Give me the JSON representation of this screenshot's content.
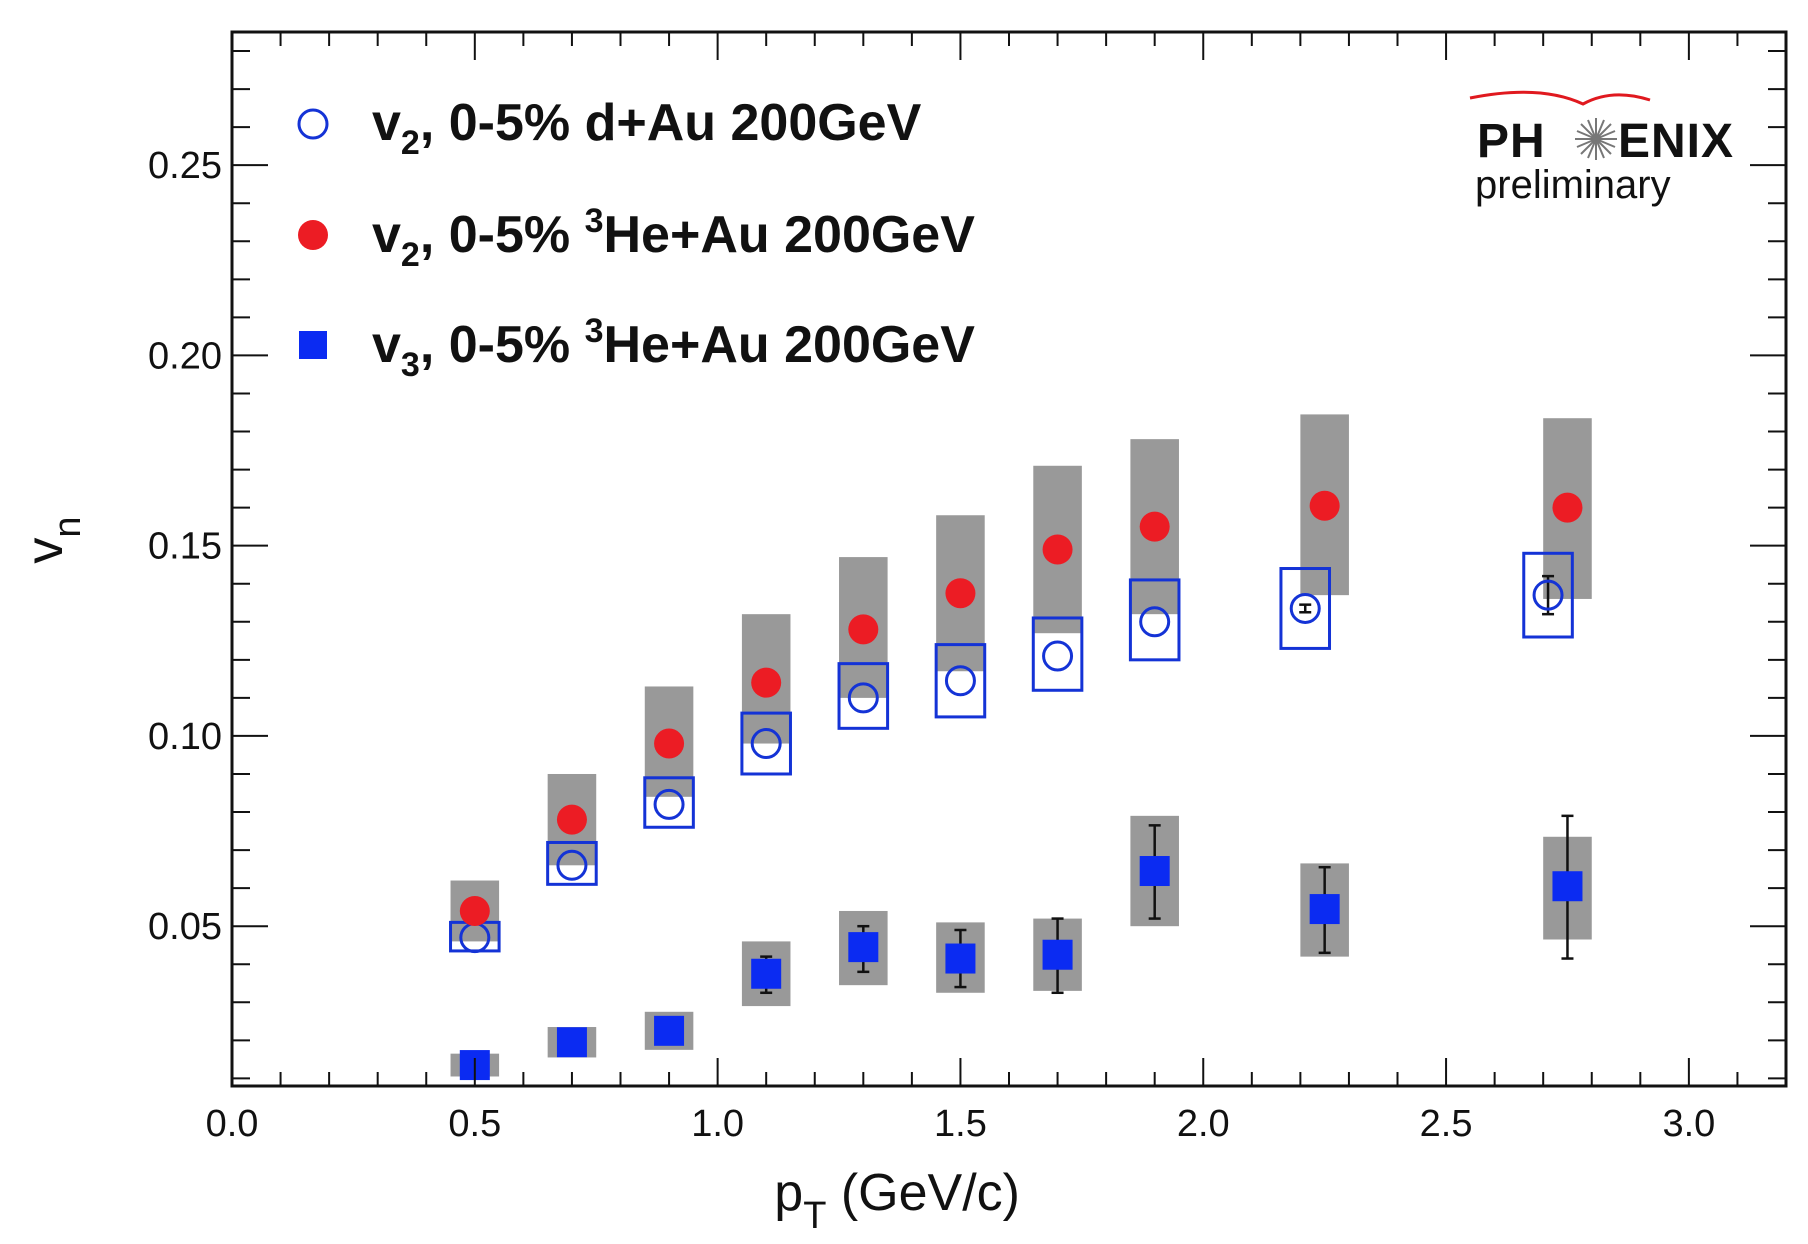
{
  "chart_data": {
    "type": "scatter",
    "xlabel": "p",
    "xlabel_sub": "T",
    "xlabel_unit": " (GeV/c)",
    "ylabel": "v",
    "ylabel_sub": "n",
    "xlim": [
      0.0,
      3.2
    ],
    "ylim": [
      0.008,
      0.285
    ],
    "xticks": [
      0.0,
      0.5,
      1.0,
      1.5,
      2.0,
      2.5,
      3.0
    ],
    "xtick_labels": [
      "0.0",
      "0.5",
      "1.0",
      "1.5",
      "2.0",
      "2.5",
      "3.0"
    ],
    "yticks": [
      0.05,
      0.1,
      0.15,
      0.2,
      0.25
    ],
    "ytick_labels": [
      "0.05",
      "0.10",
      "0.15",
      "0.20",
      "0.25"
    ],
    "series": [
      {
        "name": "v2, 0-5% d+Au 200GeV",
        "legend_parts": [
          "v",
          "2",
          ", 0-5% d+Au 200GeV"
        ],
        "marker": "open-circle",
        "color": "#1433d6",
        "syst_style": "open-box",
        "points": [
          {
            "x": 0.5,
            "y": 0.047,
            "syst_lo": 0.0435,
            "syst_hi": 0.051
          },
          {
            "x": 0.7,
            "y": 0.066,
            "syst_lo": 0.061,
            "syst_hi": 0.072
          },
          {
            "x": 0.9,
            "y": 0.082,
            "syst_lo": 0.076,
            "syst_hi": 0.089
          },
          {
            "x": 1.1,
            "y": 0.098,
            "syst_lo": 0.09,
            "syst_hi": 0.106
          },
          {
            "x": 1.3,
            "y": 0.11,
            "syst_lo": 0.102,
            "syst_hi": 0.119
          },
          {
            "x": 1.5,
            "y": 0.1145,
            "syst_lo": 0.105,
            "syst_hi": 0.124
          },
          {
            "x": 1.7,
            "y": 0.121,
            "syst_lo": 0.112,
            "syst_hi": 0.131
          },
          {
            "x": 1.9,
            "y": 0.13,
            "syst_lo": 0.12,
            "syst_hi": 0.141
          },
          {
            "x": 2.21,
            "y": 0.1335,
            "syst_lo": 0.123,
            "syst_hi": 0.144,
            "err_lo": 0.1325,
            "err_hi": 0.1345
          },
          {
            "x": 2.71,
            "y": 0.137,
            "syst_lo": 0.126,
            "syst_hi": 0.148,
            "err_lo": 0.132,
            "err_hi": 0.142
          }
        ]
      },
      {
        "name": "v2, 0-5% 3He+Au 200GeV",
        "legend_parts": [
          "v",
          "2",
          ", 0-5% ",
          "3",
          "He+Au 200GeV"
        ],
        "marker": "filled-circle",
        "color": "#ec1c24",
        "syst_style": "gray-band",
        "points": [
          {
            "x": 0.5,
            "y": 0.054,
            "syst_lo": 0.046,
            "syst_hi": 0.062
          },
          {
            "x": 0.7,
            "y": 0.078,
            "syst_lo": 0.066,
            "syst_hi": 0.09
          },
          {
            "x": 0.9,
            "y": 0.098,
            "syst_lo": 0.084,
            "syst_hi": 0.113
          },
          {
            "x": 1.1,
            "y": 0.114,
            "syst_lo": 0.098,
            "syst_hi": 0.132
          },
          {
            "x": 1.3,
            "y": 0.128,
            "syst_lo": 0.11,
            "syst_hi": 0.147
          },
          {
            "x": 1.5,
            "y": 0.1375,
            "syst_lo": 0.117,
            "syst_hi": 0.158
          },
          {
            "x": 1.7,
            "y": 0.149,
            "syst_lo": 0.127,
            "syst_hi": 0.171
          },
          {
            "x": 1.9,
            "y": 0.155,
            "syst_lo": 0.132,
            "syst_hi": 0.178
          },
          {
            "x": 2.25,
            "y": 0.1605,
            "syst_lo": 0.137,
            "syst_hi": 0.1845
          },
          {
            "x": 2.75,
            "y": 0.16,
            "syst_lo": 0.136,
            "syst_hi": 0.1835
          }
        ]
      },
      {
        "name": "v3, 0-5% 3He+Au 200GeV",
        "legend_parts": [
          "v",
          "3",
          ", 0-5% ",
          "3",
          "He+Au 200GeV"
        ],
        "marker": "filled-square",
        "color": "#0b2bf2",
        "syst_style": "gray-band",
        "points": [
          {
            "x": 0.5,
            "y": 0.0135,
            "syst_lo": 0.0105,
            "syst_hi": 0.0165,
            "err_lo": 0.0125,
            "err_hi": 0.0145
          },
          {
            "x": 0.7,
            "y": 0.0195,
            "syst_lo": 0.0155,
            "syst_hi": 0.0235,
            "err_lo": 0.0185,
            "err_hi": 0.0205
          },
          {
            "x": 0.9,
            "y": 0.0225,
            "syst_lo": 0.0175,
            "syst_hi": 0.0275,
            "err_lo": 0.021,
            "err_hi": 0.024
          },
          {
            "x": 1.1,
            "y": 0.0375,
            "syst_lo": 0.029,
            "syst_hi": 0.046,
            "err_lo": 0.0325,
            "err_hi": 0.042
          },
          {
            "x": 1.3,
            "y": 0.0445,
            "syst_lo": 0.0345,
            "syst_hi": 0.054,
            "err_lo": 0.038,
            "err_hi": 0.05
          },
          {
            "x": 1.5,
            "y": 0.0415,
            "syst_lo": 0.0325,
            "syst_hi": 0.051,
            "err_lo": 0.034,
            "err_hi": 0.049
          },
          {
            "x": 1.7,
            "y": 0.0425,
            "syst_lo": 0.033,
            "syst_hi": 0.052,
            "err_lo": 0.0325,
            "err_hi": 0.052
          },
          {
            "x": 1.9,
            "y": 0.0645,
            "syst_lo": 0.05,
            "syst_hi": 0.079,
            "err_lo": 0.052,
            "err_hi": 0.0765
          },
          {
            "x": 2.25,
            "y": 0.0545,
            "syst_lo": 0.042,
            "syst_hi": 0.0665,
            "err_lo": 0.043,
            "err_hi": 0.0655
          },
          {
            "x": 2.75,
            "y": 0.0605,
            "syst_lo": 0.0465,
            "syst_hi": 0.0735,
            "err_lo": 0.0415,
            "err_hi": 0.079
          }
        ]
      }
    ],
    "legend_position": "top-left"
  },
  "logo": {
    "text_left": "PH",
    "text_right": "ENIX",
    "subtitle": "preliminary",
    "arc_color": "#e0191f"
  },
  "colors": {
    "syst_band": "#999999",
    "axis": "#111111",
    "error_bar": "#111111"
  }
}
